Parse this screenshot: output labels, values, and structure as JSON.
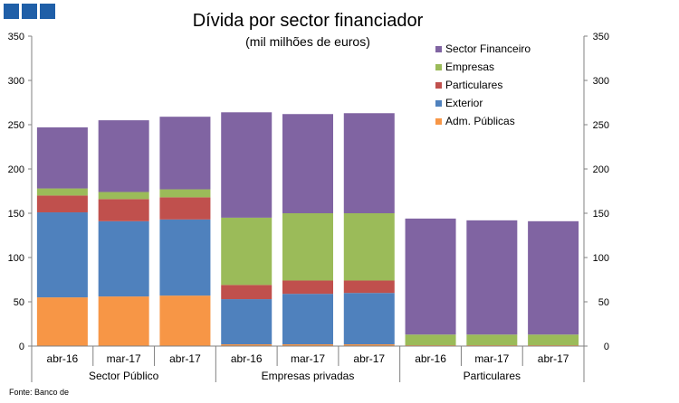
{
  "chart_data": {
    "type": "bar",
    "stacked": true,
    "title": "Dívida por sector financiador",
    "subtitle": "(mil milhões de euros)",
    "groups": [
      "Sector Público",
      "Empresas privadas",
      "Particulares"
    ],
    "categories": [
      "abr-16",
      "mar-17",
      "abr-17",
      "abr-16",
      "mar-17",
      "abr-17",
      "abr-16",
      "mar-17",
      "abr-17"
    ],
    "series": [
      {
        "name": "Adm. Públicas",
        "color": "#F79646",
        "values": [
          55,
          56,
          57,
          2,
          2,
          2,
          1,
          1,
          1
        ]
      },
      {
        "name": "Exterior",
        "color": "#4F81BD",
        "values": [
          96,
          85,
          86,
          51,
          57,
          58,
          0,
          0,
          0
        ]
      },
      {
        "name": "Particulares",
        "color": "#C0504D",
        "values": [
          19,
          25,
          25,
          16,
          15,
          14,
          0,
          0,
          0
        ]
      },
      {
        "name": "Empresas",
        "color": "#9BBB59",
        "values": [
          8,
          8,
          9,
          76,
          76,
          76,
          12,
          12,
          12
        ]
      },
      {
        "name": "Sector Financeiro",
        "color": "#8064A2",
        "values": [
          69,
          81,
          82,
          119,
          112,
          113,
          131,
          129,
          128
        ]
      }
    ],
    "ylim": [
      0,
      350
    ],
    "yticks": [
      "0",
      "50",
      "100",
      "150",
      "200",
      "250",
      "300",
      "350"
    ],
    "legend_position": "top-right",
    "secondary_axis": true,
    "grid": false
  },
  "source_text": "Fonte: Banco de",
  "brand_colors": {
    "logo": "#1F5FA8"
  }
}
